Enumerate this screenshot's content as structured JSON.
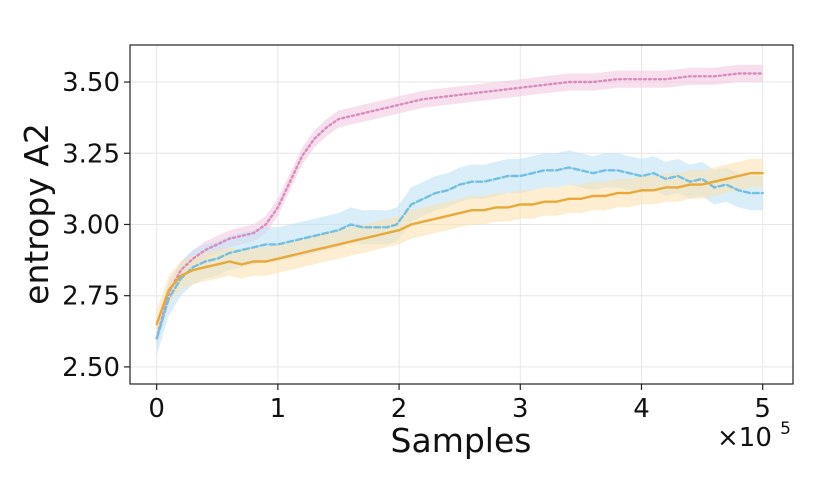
{
  "chart_data": {
    "type": "line",
    "xlabel": "Samples",
    "ylabel": "entropy A2",
    "x_multiplier_label": "×10",
    "x_multiplier_exponent": "5",
    "xlim": [
      -0.22,
      5.25
    ],
    "ylim": [
      2.44,
      3.63
    ],
    "x_ticks": [
      0,
      1,
      2,
      3,
      4,
      5
    ],
    "x_tick_labels": [
      "0",
      "1",
      "2",
      "3",
      "4",
      "5"
    ],
    "y_ticks": [
      2.5,
      2.75,
      3.0,
      3.25,
      3.5
    ],
    "y_tick_labels": [
      "2.50",
      "2.75",
      "3.00",
      "3.25",
      "3.50"
    ],
    "grid": true,
    "series": [
      {
        "color": "#d98cbf",
        "band_color": "#f2c9e1",
        "style": "dotted",
        "x": [
          0,
          0.1,
          0.2,
          0.3,
          0.4,
          0.5,
          0.6,
          0.7,
          0.8,
          0.9,
          1.0,
          1.1,
          1.2,
          1.3,
          1.4,
          1.5,
          1.6,
          1.7,
          1.8,
          1.9,
          2.0,
          2.2,
          2.4,
          2.6,
          2.8,
          3.0,
          3.2,
          3.4,
          3.6,
          3.8,
          4.0,
          4.2,
          4.4,
          4.6,
          4.8,
          5.0
        ],
        "y": [
          2.6,
          2.76,
          2.84,
          2.88,
          2.91,
          2.93,
          2.95,
          2.96,
          2.97,
          3.0,
          3.06,
          3.15,
          3.24,
          3.3,
          3.34,
          3.37,
          3.38,
          3.39,
          3.4,
          3.41,
          3.42,
          3.44,
          3.45,
          3.46,
          3.47,
          3.48,
          3.49,
          3.5,
          3.5,
          3.51,
          3.51,
          3.51,
          3.52,
          3.52,
          3.53,
          3.53
        ],
        "band": 0.03
      },
      {
        "color": "#74c0e3",
        "band_color": "#bfe2f5",
        "style": "dashed",
        "x": [
          0,
          0.1,
          0.2,
          0.3,
          0.4,
          0.5,
          0.6,
          0.7,
          0.8,
          0.9,
          1.0,
          1.1,
          1.2,
          1.3,
          1.4,
          1.5,
          1.6,
          1.7,
          1.8,
          1.9,
          1.98,
          2.05,
          2.1,
          2.2,
          2.3,
          2.4,
          2.5,
          2.6,
          2.7,
          2.8,
          2.9,
          3.0,
          3.1,
          3.2,
          3.3,
          3.4,
          3.5,
          3.6,
          3.7,
          3.8,
          3.9,
          4.0,
          4.1,
          4.2,
          4.3,
          4.4,
          4.5,
          4.6,
          4.7,
          4.8,
          4.9,
          5.0
        ],
        "y": [
          2.6,
          2.74,
          2.81,
          2.85,
          2.87,
          2.88,
          2.9,
          2.91,
          2.92,
          2.93,
          2.93,
          2.94,
          2.95,
          2.96,
          2.97,
          2.98,
          3.0,
          2.99,
          2.99,
          2.99,
          3.0,
          3.04,
          3.07,
          3.09,
          3.11,
          3.12,
          3.14,
          3.15,
          3.15,
          3.16,
          3.17,
          3.17,
          3.18,
          3.19,
          3.19,
          3.2,
          3.19,
          3.18,
          3.19,
          3.19,
          3.18,
          3.17,
          3.18,
          3.16,
          3.17,
          3.15,
          3.16,
          3.13,
          3.14,
          3.12,
          3.11,
          3.11
        ],
        "band": 0.06
      },
      {
        "color": "#e8a93a",
        "band_color": "#fbe3b3",
        "style": "solid",
        "x": [
          0,
          0.1,
          0.2,
          0.3,
          0.4,
          0.5,
          0.6,
          0.7,
          0.8,
          0.9,
          1.0,
          1.1,
          1.2,
          1.3,
          1.4,
          1.5,
          1.6,
          1.7,
          1.8,
          1.9,
          2.0,
          2.1,
          2.2,
          2.3,
          2.4,
          2.5,
          2.6,
          2.7,
          2.8,
          2.9,
          3.0,
          3.1,
          3.2,
          3.3,
          3.4,
          3.5,
          3.6,
          3.7,
          3.8,
          3.9,
          4.0,
          4.1,
          4.2,
          4.3,
          4.4,
          4.5,
          4.6,
          4.7,
          4.8,
          4.9,
          5.0
        ],
        "y": [
          2.65,
          2.77,
          2.82,
          2.84,
          2.85,
          2.86,
          2.87,
          2.86,
          2.87,
          2.87,
          2.88,
          2.89,
          2.9,
          2.91,
          2.92,
          2.93,
          2.94,
          2.95,
          2.96,
          2.97,
          2.98,
          3.0,
          3.01,
          3.02,
          3.03,
          3.04,
          3.05,
          3.05,
          3.06,
          3.06,
          3.07,
          3.07,
          3.08,
          3.08,
          3.09,
          3.09,
          3.1,
          3.1,
          3.11,
          3.11,
          3.12,
          3.12,
          3.13,
          3.13,
          3.14,
          3.14,
          3.15,
          3.16,
          3.17,
          3.18,
          3.18
        ],
        "band": 0.05
      }
    ]
  }
}
